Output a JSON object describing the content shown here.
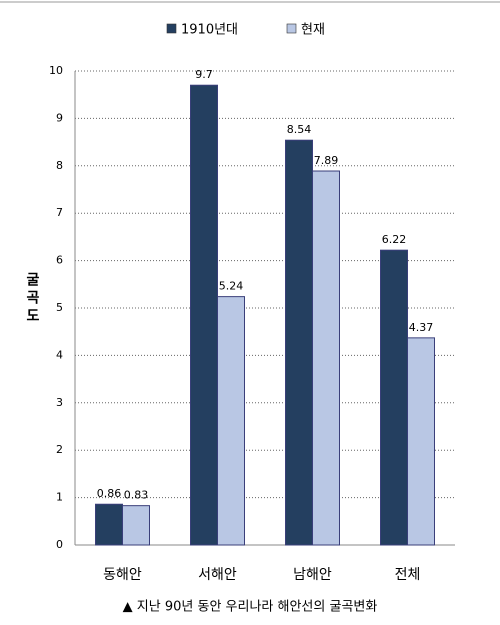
{
  "chart_data": {
    "type": "bar",
    "ylabel": "굴곡도",
    "caption": "▲ 지난 90년 동안 우리나라 해안선의 굴곡변화",
    "categories": [
      "동해안",
      "서해안",
      "남해안",
      "전체"
    ],
    "series": [
      {
        "name": "1910년대",
        "color": "#243f60",
        "values": [
          0.86,
          9.7,
          8.54,
          6.22
        ]
      },
      {
        "name": "현재",
        "color": "#b9c7e4",
        "values": [
          0.83,
          5.24,
          7.89,
          4.37
        ]
      }
    ],
    "ylim": [
      0,
      10
    ],
    "yticks": [
      0,
      1,
      2,
      3,
      4,
      5,
      6,
      7,
      8,
      9,
      10
    ],
    "grid": true
  }
}
